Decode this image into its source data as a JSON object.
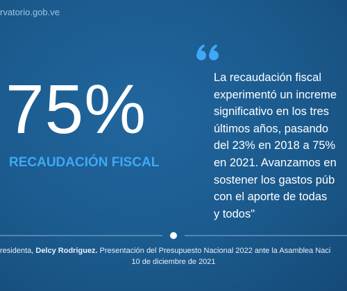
{
  "header": {
    "site": "rvatorio.gob.ve"
  },
  "highlight": {
    "value": "75%",
    "label": "RECAUDACIÓN FISCAL"
  },
  "quote": {
    "lines": [
      "La recaudación fiscal",
      "experimentó un increme",
      "significativo en los tres",
      "últimos años, pasando",
      "del 23% en 2018 a 75%",
      "en 2021. Avanzamos en",
      "sostener los gastos púb",
      "con el aporte de todas",
      "y todos\""
    ]
  },
  "footer": {
    "prefix": "residenta, ",
    "speaker": "Delcy Rodriguez.",
    "event": " Presentación del Presupuesto Nacional 2022 ante la Asamblea Naci",
    "date": "10 de diciembre de 2021"
  }
}
